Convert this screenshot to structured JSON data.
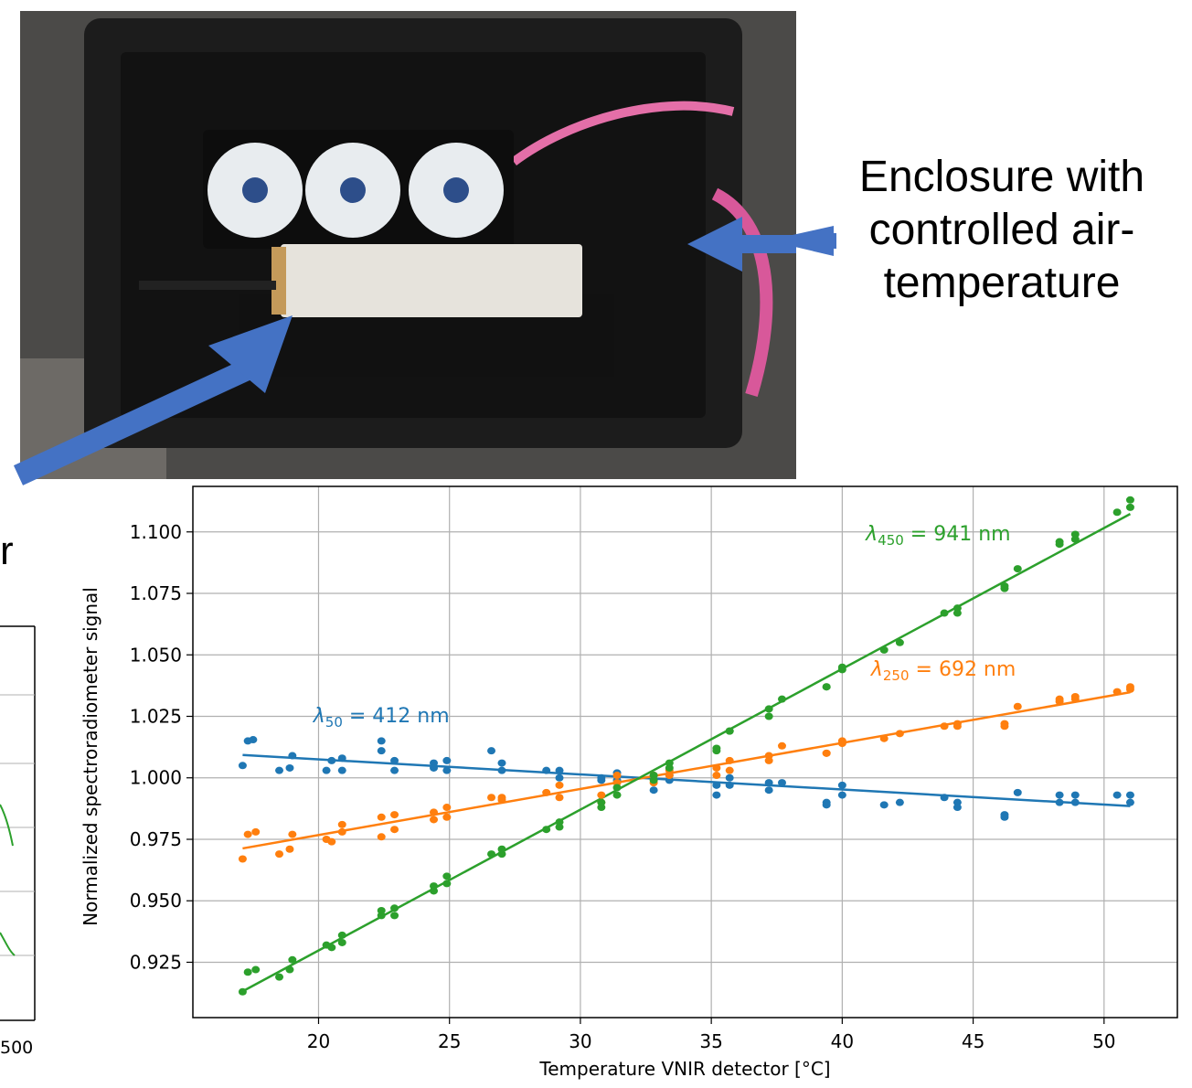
{
  "caption": {
    "lines": [
      "Enclosure with",
      "controlled air-",
      "temperature"
    ]
  },
  "partial_left": {
    "letter": "r",
    "tick_label": "500"
  },
  "photo": {
    "icons": [
      "fan-icon",
      "fan-icon",
      "fan-icon",
      "spectroradiometer-icon",
      "arrow-icon"
    ]
  },
  "chart_data": {
    "type": "scatter",
    "xlabel": "Temperature VNIR detector [°C]",
    "ylabel": "Normalized spectroradiometer signal",
    "xlim": [
      15.2,
      52.8
    ],
    "ylim": [
      0.9025,
      1.1185
    ],
    "xticks": [
      20,
      25,
      30,
      35,
      40,
      45,
      50
    ],
    "yticks": [
      0.925,
      0.95,
      0.975,
      1.0,
      1.025,
      1.05,
      1.075,
      1.1
    ],
    "ytick_labels": [
      "0.925",
      "0.950",
      "0.975",
      "1.000",
      "1.025",
      "1.050",
      "1.075",
      "1.100"
    ],
    "grid": true,
    "series": [
      {
        "label_sym": "λ",
        "label_sub": "50",
        "label_value": "= 412 nm",
        "color": "#1f77b4",
        "fit": [
          [
            17.1,
            1.0093
          ],
          [
            51.0,
            0.9885
          ]
        ],
        "points": [
          [
            17.1,
            1.005
          ],
          [
            17.3,
            1.015
          ],
          [
            17.5,
            1.0155
          ],
          [
            18.5,
            1.003
          ],
          [
            18.9,
            1.004
          ],
          [
            19.0,
            1.009
          ],
          [
            20.3,
            1.003
          ],
          [
            20.5,
            1.007
          ],
          [
            20.9,
            1.003
          ],
          [
            20.9,
            1.008
          ],
          [
            22.4,
            1.015
          ],
          [
            22.4,
            1.011
          ],
          [
            22.9,
            1.007
          ],
          [
            22.9,
            1.003
          ],
          [
            24.4,
            1.006
          ],
          [
            24.4,
            1.004
          ],
          [
            24.9,
            1.007
          ],
          [
            24.9,
            1.003
          ],
          [
            26.6,
            1.011
          ],
          [
            27.0,
            1.006
          ],
          [
            27.0,
            1.003
          ],
          [
            28.7,
            1.003
          ],
          [
            29.2,
            1.003
          ],
          [
            29.2,
            1.0
          ],
          [
            30.8,
            1.0
          ],
          [
            30.8,
            0.999
          ],
          [
            31.4,
            1.002
          ],
          [
            31.4,
            0.999
          ],
          [
            32.8,
            0.995
          ],
          [
            32.8,
            1.001
          ],
          [
            33.4,
            1.001
          ],
          [
            33.4,
            0.999
          ],
          [
            35.2,
            0.993
          ],
          [
            35.2,
            0.997
          ],
          [
            35.7,
            1.0
          ],
          [
            35.7,
            0.997
          ],
          [
            37.2,
            0.998
          ],
          [
            37.2,
            0.995
          ],
          [
            37.7,
            0.998
          ],
          [
            39.4,
            0.99
          ],
          [
            39.4,
            0.989
          ],
          [
            40.0,
            0.997
          ],
          [
            40.0,
            0.993
          ],
          [
            41.6,
            0.989
          ],
          [
            42.2,
            0.99
          ],
          [
            43.9,
            0.992
          ],
          [
            44.4,
            0.99
          ],
          [
            44.4,
            0.988
          ],
          [
            46.2,
            0.984
          ],
          [
            46.2,
            0.985
          ],
          [
            46.7,
            0.994
          ],
          [
            48.3,
            0.993
          ],
          [
            48.3,
            0.99
          ],
          [
            48.9,
            0.993
          ],
          [
            48.9,
            0.99
          ],
          [
            50.5,
            0.993
          ],
          [
            51.0,
            0.993
          ],
          [
            51.0,
            0.99
          ]
        ]
      },
      {
        "label_sym": "λ",
        "label_sub": "250",
        "label_value": "= 692 nm",
        "color": "#ff7f0e",
        "fit": [
          [
            17.1,
            0.9713
          ],
          [
            51.0,
            1.0348
          ]
        ],
        "points": [
          [
            17.1,
            0.967
          ],
          [
            17.3,
            0.977
          ],
          [
            17.6,
            0.978
          ],
          [
            18.5,
            0.969
          ],
          [
            18.9,
            0.971
          ],
          [
            19.0,
            0.977
          ],
          [
            20.3,
            0.975
          ],
          [
            20.5,
            0.974
          ],
          [
            20.9,
            0.978
          ],
          [
            20.9,
            0.981
          ],
          [
            22.4,
            0.976
          ],
          [
            22.4,
            0.984
          ],
          [
            22.9,
            0.985
          ],
          [
            22.9,
            0.979
          ],
          [
            24.4,
            0.983
          ],
          [
            24.4,
            0.986
          ],
          [
            24.9,
            0.988
          ],
          [
            24.9,
            0.984
          ],
          [
            26.6,
            0.992
          ],
          [
            27.0,
            0.992
          ],
          [
            27.0,
            0.991
          ],
          [
            28.7,
            0.994
          ],
          [
            29.2,
            0.997
          ],
          [
            29.2,
            0.992
          ],
          [
            30.8,
            0.99
          ],
          [
            30.8,
            0.993
          ],
          [
            31.4,
            0.998
          ],
          [
            31.4,
            1.001
          ],
          [
            32.8,
            0.998
          ],
          [
            32.8,
            1.001
          ],
          [
            33.4,
            1.003
          ],
          [
            33.4,
            1.001
          ],
          [
            35.2,
            1.004
          ],
          [
            35.2,
            1.001
          ],
          [
            35.7,
            1.007
          ],
          [
            35.7,
            1.003
          ],
          [
            37.2,
            1.009
          ],
          [
            37.2,
            1.007
          ],
          [
            37.7,
            1.013
          ],
          [
            39.4,
            1.01
          ],
          [
            39.4,
            1.01
          ],
          [
            40.0,
            1.015
          ],
          [
            40.0,
            1.014
          ],
          [
            41.6,
            1.016
          ],
          [
            42.2,
            1.018
          ],
          [
            43.9,
            1.021
          ],
          [
            44.4,
            1.021
          ],
          [
            44.4,
            1.022
          ],
          [
            46.2,
            1.021
          ],
          [
            46.2,
            1.022
          ],
          [
            46.7,
            1.029
          ],
          [
            48.3,
            1.031
          ],
          [
            48.3,
            1.032
          ],
          [
            48.9,
            1.032
          ],
          [
            48.9,
            1.033
          ],
          [
            50.5,
            1.035
          ],
          [
            51.0,
            1.036
          ],
          [
            51.0,
            1.037
          ]
        ]
      },
      {
        "label_sym": "λ",
        "label_sub": "450",
        "label_value": "= 941 nm",
        "color": "#2ca02c",
        "fit": [
          [
            17.1,
            0.9132
          ],
          [
            51.0,
            1.1073
          ]
        ],
        "points": [
          [
            17.1,
            0.913
          ],
          [
            17.3,
            0.921
          ],
          [
            17.6,
            0.922
          ],
          [
            18.5,
            0.919
          ],
          [
            18.9,
            0.922
          ],
          [
            19.0,
            0.926
          ],
          [
            20.3,
            0.932
          ],
          [
            20.5,
            0.931
          ],
          [
            20.9,
            0.933
          ],
          [
            20.9,
            0.936
          ],
          [
            22.4,
            0.944
          ],
          [
            22.4,
            0.946
          ],
          [
            22.9,
            0.944
          ],
          [
            22.9,
            0.947
          ],
          [
            24.4,
            0.954
          ],
          [
            24.4,
            0.956
          ],
          [
            24.9,
            0.957
          ],
          [
            24.9,
            0.96
          ],
          [
            26.6,
            0.969
          ],
          [
            27.0,
            0.969
          ],
          [
            27.0,
            0.971
          ],
          [
            28.7,
            0.979
          ],
          [
            29.2,
            0.98
          ],
          [
            29.2,
            0.982
          ],
          [
            30.8,
            0.988
          ],
          [
            30.8,
            0.99
          ],
          [
            31.4,
            0.993
          ],
          [
            31.4,
            0.996
          ],
          [
            32.8,
            0.999
          ],
          [
            32.8,
            1.001
          ],
          [
            33.4,
            1.004
          ],
          [
            33.4,
            1.006
          ],
          [
            35.2,
            1.011
          ],
          [
            35.2,
            1.012
          ],
          [
            35.7,
            1.019
          ],
          [
            35.7,
            1.019
          ],
          [
            37.2,
            1.025
          ],
          [
            37.2,
            1.028
          ],
          [
            37.7,
            1.032
          ],
          [
            39.4,
            1.037
          ],
          [
            39.4,
            1.037
          ],
          [
            40.0,
            1.044
          ],
          [
            40.0,
            1.045
          ],
          [
            41.6,
            1.052
          ],
          [
            42.2,
            1.055
          ],
          [
            43.9,
            1.067
          ],
          [
            44.4,
            1.067
          ],
          [
            44.4,
            1.069
          ],
          [
            46.2,
            1.077
          ],
          [
            46.2,
            1.078
          ],
          [
            46.7,
            1.085
          ],
          [
            48.3,
            1.095
          ],
          [
            48.3,
            1.096
          ],
          [
            48.9,
            1.097
          ],
          [
            48.9,
            1.099
          ],
          [
            50.5,
            1.108
          ],
          [
            51.0,
            1.11
          ],
          [
            51.0,
            1.113
          ]
        ]
      }
    ]
  }
}
